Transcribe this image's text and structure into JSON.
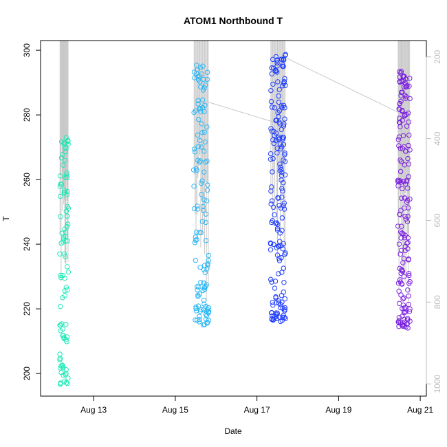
{
  "chart_data": {
    "type": "scatter",
    "title": "ATOM1 Northbound T",
    "xlabel": "Date",
    "ylabel": "T",
    "x_unit": "days in August",
    "xlim": [
      11.7,
      21.15
    ],
    "ylim": [
      193,
      303
    ],
    "x_ticks": [
      13,
      15,
      17,
      19,
      21
    ],
    "x_tick_labels": [
      "Aug 13",
      "Aug 15",
      "Aug 17",
      "Aug 19",
      "Aug 21"
    ],
    "y_ticks": [
      200,
      220,
      240,
      260,
      280,
      300
    ],
    "y_tick_labels": [
      "200",
      "220",
      "240",
      "260",
      "280",
      "300"
    ],
    "right_axis": {
      "lim": [
        1030,
        160
      ],
      "ticks": [
        200,
        400,
        600,
        800,
        1000
      ],
      "tick_labels": [
        "200",
        "400",
        "600",
        "800",
        "1000"
      ],
      "color": "#bbbbbb"
    },
    "profile_line_color": "#c8c8c8",
    "grid": false,
    "legend": "none",
    "series": [
      {
        "color": "#1de9b6",
        "x_start": 12.17,
        "x_end": 12.38,
        "t_min": 196.5,
        "t_max": 273,
        "p_min": 200,
        "p_max": 780,
        "count": 95
      },
      {
        "color": "#29b6f6",
        "x_start": 15.45,
        "x_end": 15.82,
        "t_min": 215,
        "t_max": 295.5,
        "p_min": 200,
        "p_max": 850,
        "count": 130
      },
      {
        "color": "#1e3cff",
        "x_start": 17.33,
        "x_end": 17.7,
        "t_min": 216,
        "t_max": 299,
        "p_min": 200,
        "p_max": 740,
        "count": 175
      },
      {
        "color": "#7a1fe0",
        "x_start": 20.45,
        "x_end": 20.75,
        "t_min": 214,
        "t_max": 293.5,
        "p_min": 180,
        "p_max": 830,
        "count": 165
      }
    ]
  }
}
